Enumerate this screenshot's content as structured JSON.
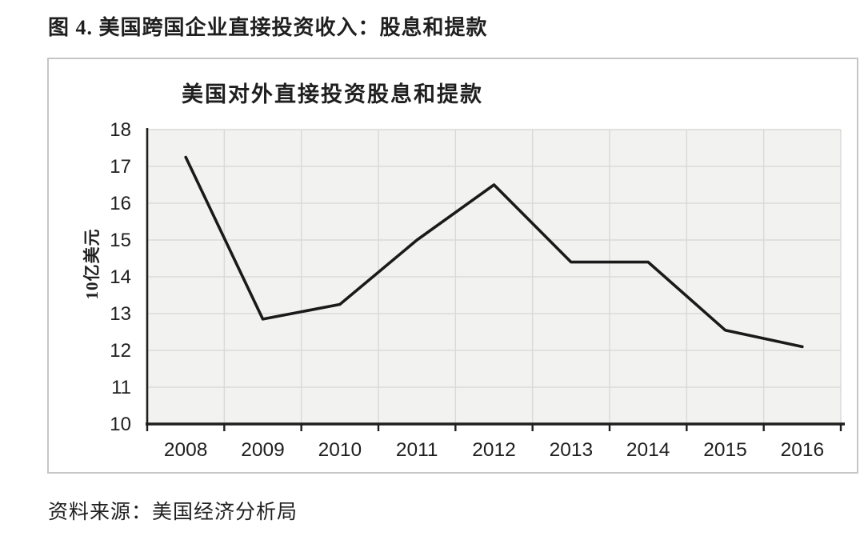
{
  "page": {
    "title": "图 4. 美国跨国企业直接投资收入：股息和提款",
    "source": "资料来源：美国经济分析局"
  },
  "chart_data": {
    "type": "line",
    "title": "美国对外直接投资股息和提款",
    "xlabel": "",
    "ylabel": "10亿美元",
    "categories": [
      "2008",
      "2009",
      "2010",
      "2011",
      "2012",
      "2013",
      "2014",
      "2015",
      "2016"
    ],
    "values": [
      17.25,
      12.85,
      13.25,
      15.0,
      16.5,
      14.4,
      14.4,
      12.55,
      12.1
    ],
    "ylim": [
      10,
      18
    ],
    "ytick_step": 1,
    "yticks": [
      10,
      11,
      12,
      13,
      14,
      15,
      16,
      17,
      18
    ],
    "grid": true,
    "legend": "none",
    "colors": {
      "line": "#1a1a1a",
      "plot_background": "#f2f2f1",
      "gridline": "#d9d9d9",
      "axis": "#1f1f1f",
      "chart_border": "#c6c6c6",
      "text": "#1f1f1f"
    }
  }
}
